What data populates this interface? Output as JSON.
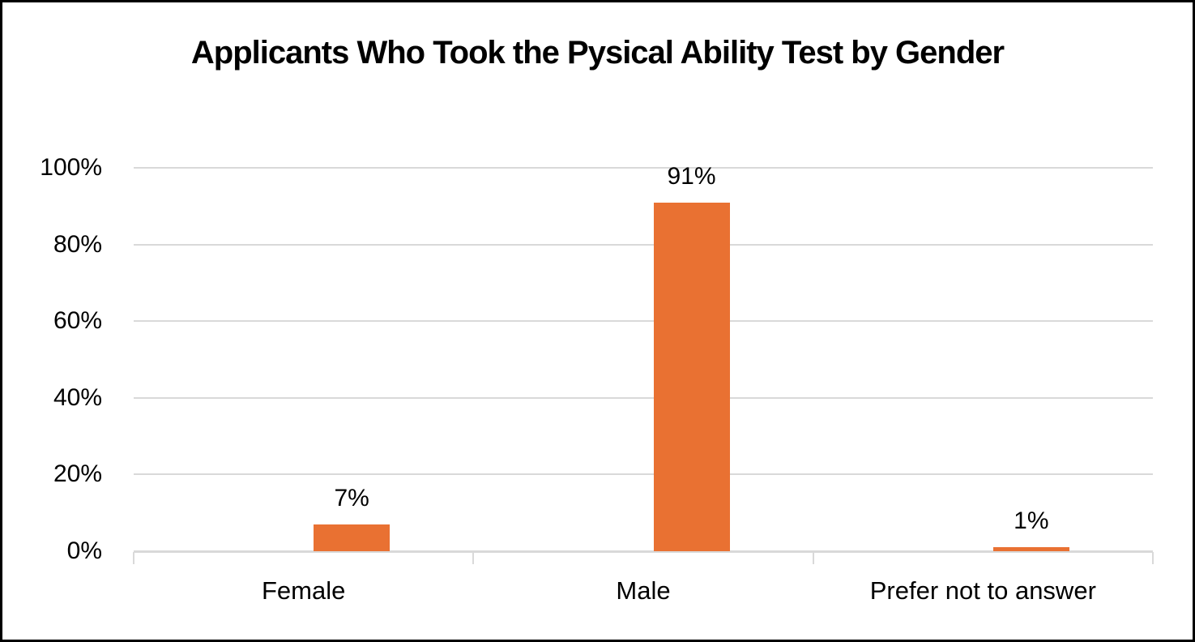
{
  "chart_data": {
    "type": "bar",
    "title": "Applicants Who Took the Pysical Ability Test by Gender",
    "categories": [
      "Female",
      "Male",
      "Prefer not to answer"
    ],
    "values": [
      7,
      91,
      1
    ],
    "data_labels": [
      "7%",
      "91%",
      "1%"
    ],
    "y_ticks": [
      {
        "label": "0%",
        "value": 0
      },
      {
        "label": "20%",
        "value": 20
      },
      {
        "label": "40%",
        "value": 40
      },
      {
        "label": "60%",
        "value": 60
      },
      {
        "label": "80%",
        "value": 80
      },
      {
        "label": "100%",
        "value": 100
      }
    ],
    "ylim": [
      0,
      100
    ],
    "xlabel": "",
    "ylabel": "",
    "grid": "horizontal",
    "legend": "none",
    "colors": {
      "bar": "#E97132",
      "gridline": "#D9D9D9",
      "axis_line": "#D9D9D9",
      "text": "#000000",
      "background": "#FFFFFF",
      "frame_border": "#000000"
    }
  }
}
